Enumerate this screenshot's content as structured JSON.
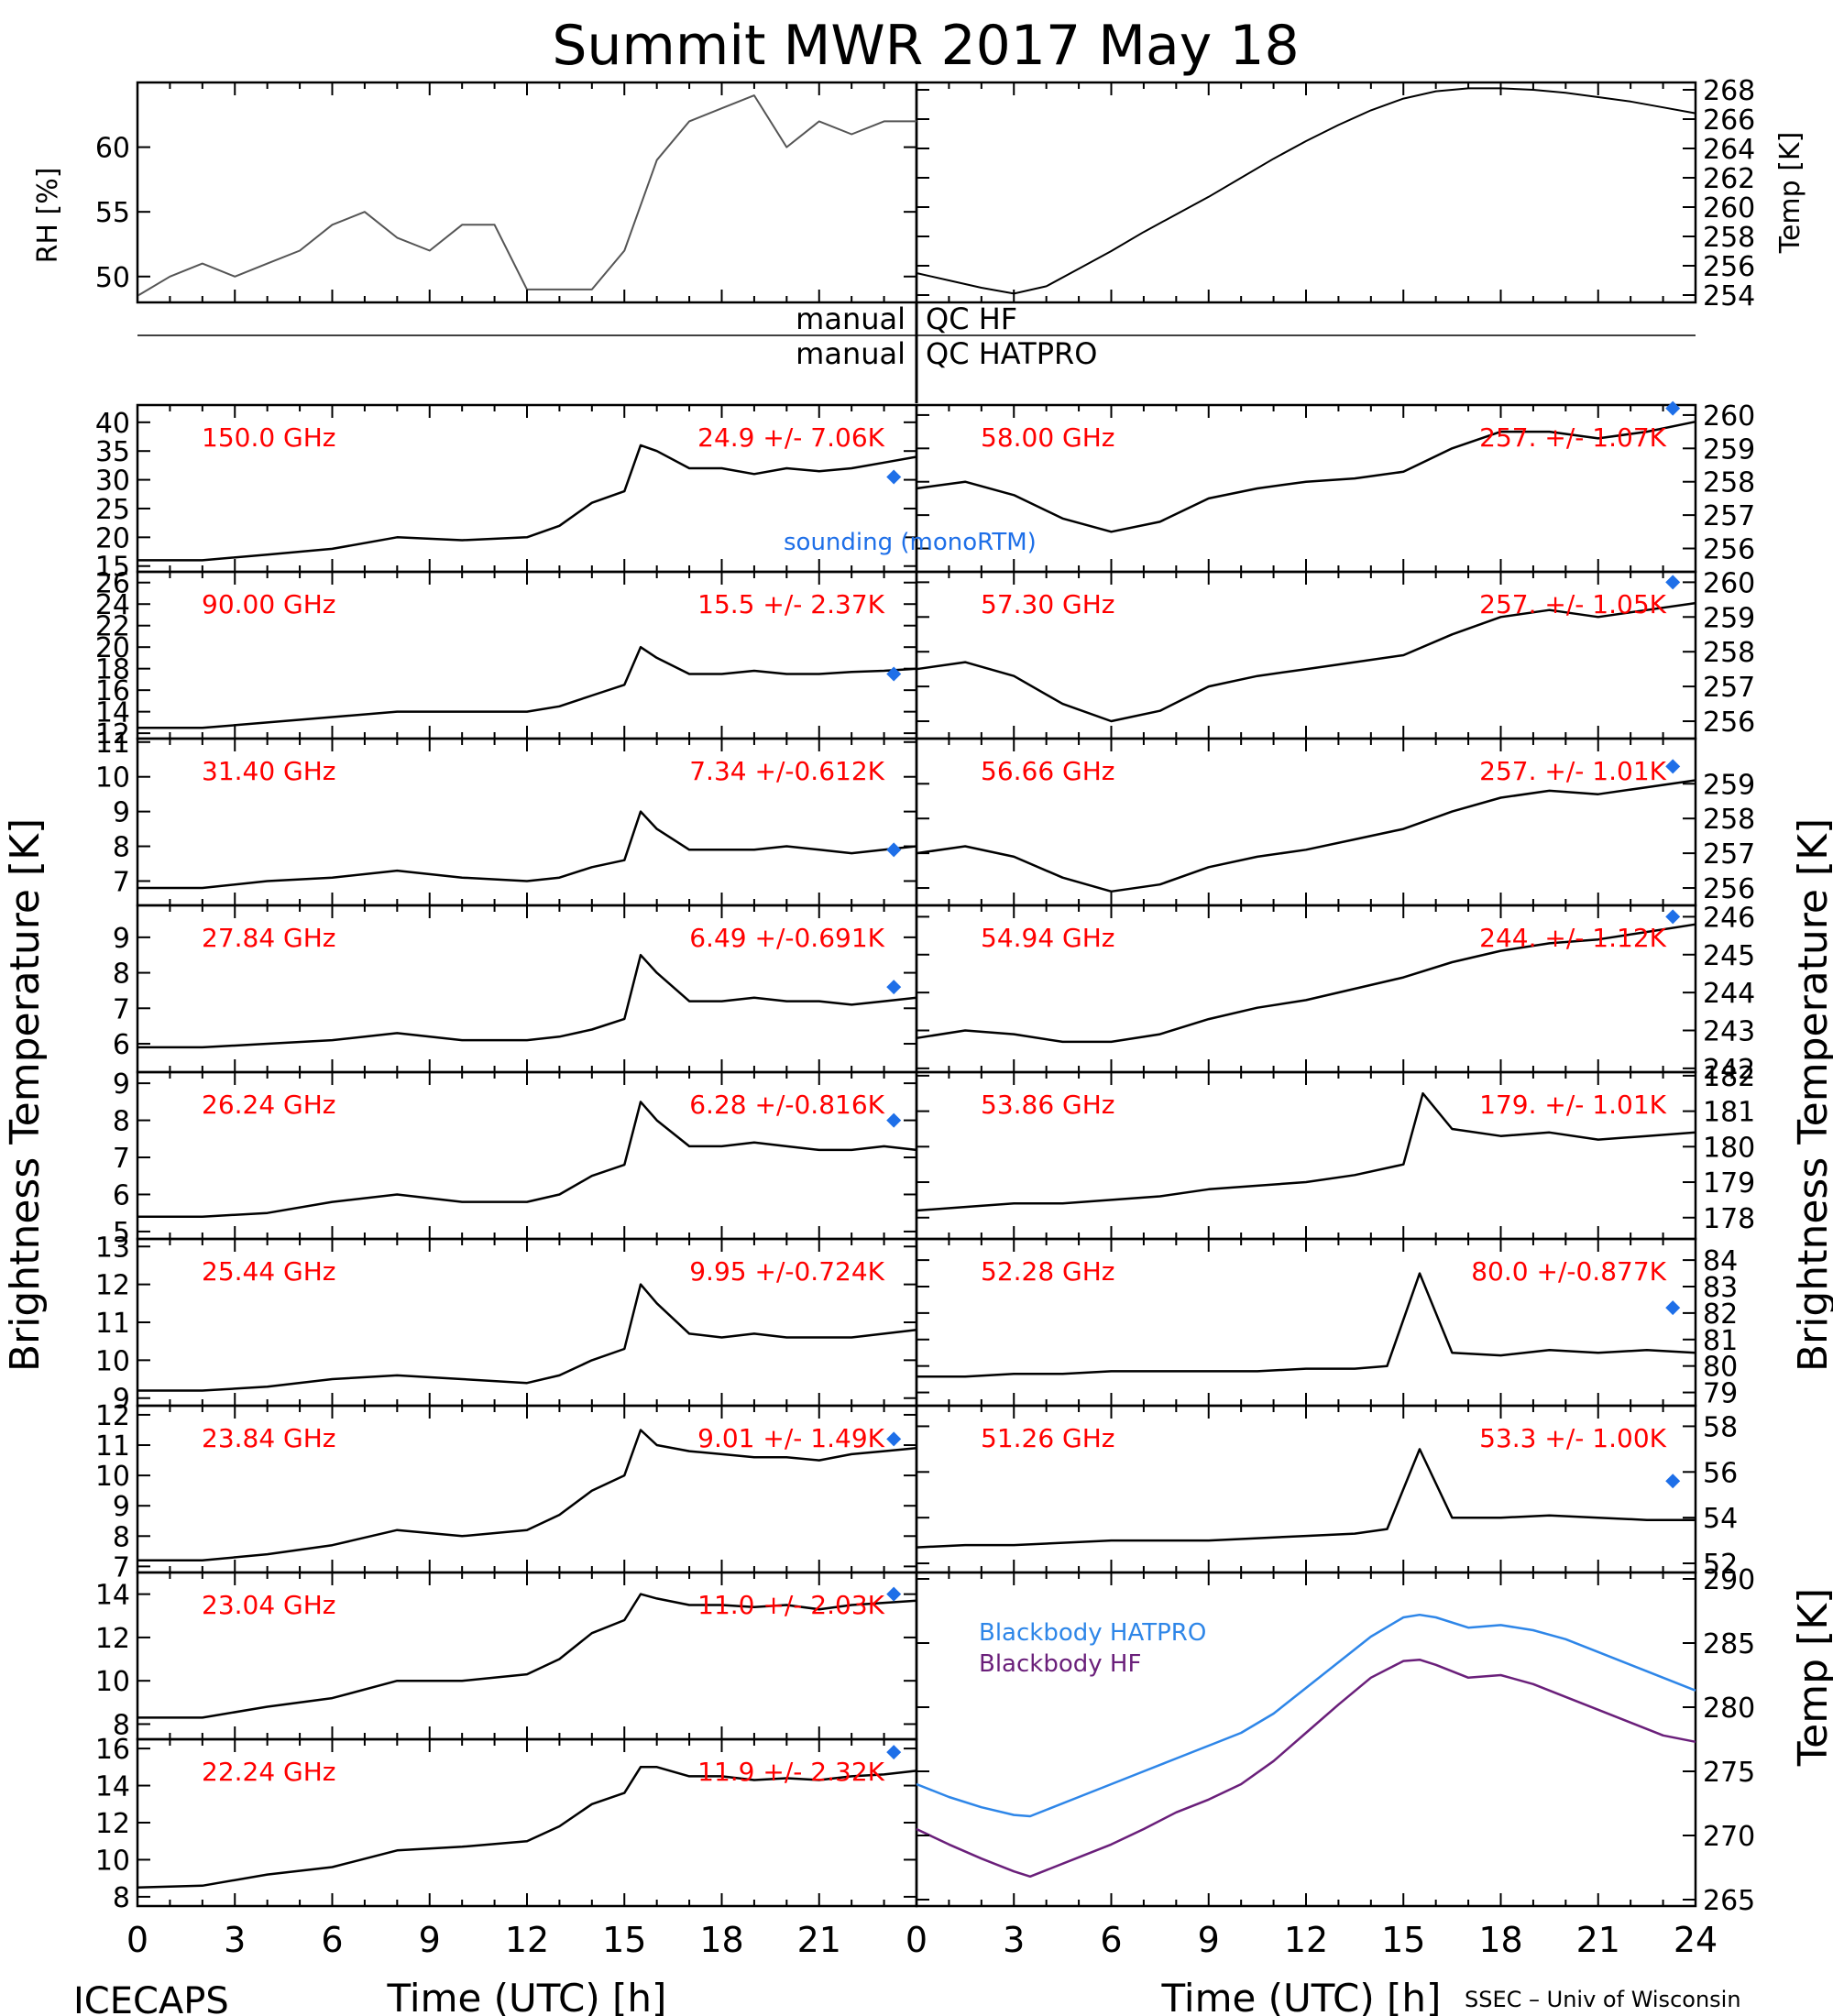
{
  "title": "Summit MWR 2017 May 18",
  "footer": {
    "left": "ICECAPS",
    "right": "SSEC – Univ of Wisconsin",
    "xlabel": "Time (UTC) [h]"
  },
  "axis_labels": {
    "brightness_left": "Brightness Temperature [K]",
    "brightness_right": "Brightness Temperature [K]",
    "rh": "RH [%]",
    "temp_top": "Temp [K]",
    "temp_bottom": "Temp [K]"
  },
  "qc_labels": {
    "left1": "manual",
    "right1": "QC HF",
    "left2": "manual",
    "right2": "QC HATPRO"
  },
  "annotations": {
    "sounding": "sounding (monoRTM)",
    "bb_hatpro": "Blackbody HATPRO",
    "bb_hf": "Blackbody HF"
  },
  "colors": {
    "data": "#000000",
    "freq_label": "#ff0000",
    "sounding": "#1e6fe8",
    "bb_hatpro": "#2e86e8",
    "bb_hf": "#6a1f7a"
  },
  "chart_data": {
    "type": "line",
    "x_ticks": [
      0,
      3,
      6,
      9,
      12,
      15,
      18,
      21,
      24
    ],
    "x_tick_labels_left": [
      "0",
      "3",
      "6",
      "9",
      "12",
      "15",
      "18",
      "21"
    ],
    "x_tick_labels_right": [
      "0",
      "3",
      "6",
      "9",
      "12",
      "15",
      "18",
      "21",
      "24"
    ],
    "rh": {
      "ylim": [
        48,
        65
      ],
      "ticks": [
        50,
        55,
        60
      ],
      "x": [
        0,
        1,
        2,
        3,
        4,
        5,
        6,
        7,
        8,
        9,
        10,
        11,
        12,
        13,
        14,
        15,
        16,
        17,
        18,
        19,
        20,
        21,
        22,
        23,
        24
      ],
      "values": [
        48.5,
        50,
        51,
        50,
        51,
        52,
        54,
        55,
        53,
        52,
        54,
        54,
        49,
        49,
        49,
        52,
        59,
        62,
        63,
        64,
        60,
        62,
        61,
        62,
        62
      ]
    },
    "temp_top": {
      "ylim": [
        253.5,
        268.5
      ],
      "ticks": [
        254,
        256,
        258,
        260,
        262,
        264,
        266,
        268
      ],
      "x": [
        0,
        1,
        2,
        3,
        4,
        5,
        6,
        7,
        8,
        9,
        10,
        11,
        12,
        13,
        14,
        15,
        16,
        17,
        18,
        19,
        20,
        21,
        22,
        23,
        24
      ],
      "values": [
        255.5,
        255,
        254.5,
        254.1,
        254.6,
        255.8,
        257,
        258.3,
        259.5,
        260.7,
        262,
        263.3,
        264.5,
        265.6,
        266.6,
        267.4,
        267.9,
        268.1,
        268.1,
        268,
        267.8,
        267.5,
        267.2,
        266.8,
        266.4
      ]
    },
    "left_panels": [
      {
        "freq": "150.0 GHz",
        "stat": "24.9 +/-  7.06K",
        "ylim": [
          14,
          43
        ],
        "ticks": [
          15,
          20,
          25,
          30,
          35,
          40
        ],
        "sounding": 30.5,
        "x": [
          0,
          2,
          4,
          6,
          8,
          10,
          12,
          13,
          14,
          15,
          15.5,
          16,
          17,
          18,
          19,
          20,
          21,
          22,
          23,
          24
        ],
        "values": [
          16,
          16,
          17,
          18,
          20,
          19.5,
          20,
          22,
          26,
          28,
          36,
          35,
          32,
          32,
          31,
          32,
          31.5,
          32,
          33,
          34
        ]
      },
      {
        "freq": "90.00 GHz",
        "stat": "15.5 +/-  2.37K",
        "ylim": [
          11.5,
          27
        ],
        "ticks": [
          12,
          14,
          16,
          18,
          20,
          22,
          24,
          26
        ],
        "sounding": 17.5,
        "x": [
          0,
          2,
          4,
          6,
          8,
          10,
          12,
          13,
          14,
          15,
          15.5,
          16,
          17,
          18,
          19,
          20,
          21,
          22,
          23,
          24
        ],
        "values": [
          12.5,
          12.5,
          13,
          13.5,
          14,
          14,
          14,
          14.5,
          15.5,
          16.5,
          20,
          19,
          17.5,
          17.5,
          17.8,
          17.5,
          17.5,
          17.7,
          17.8,
          18
        ]
      },
      {
        "freq": "31.40 GHz",
        "stat": "7.34 +/-0.612K",
        "ylim": [
          6.3,
          11.1
        ],
        "ticks": [
          7,
          8,
          9,
          10,
          11
        ],
        "sounding": 7.9,
        "x": [
          0,
          2,
          4,
          6,
          8,
          10,
          12,
          13,
          14,
          15,
          15.5,
          16,
          17,
          18,
          19,
          20,
          21,
          22,
          23,
          24
        ],
        "values": [
          6.8,
          6.8,
          7,
          7.1,
          7.3,
          7.1,
          7,
          7.1,
          7.4,
          7.6,
          9,
          8.5,
          7.9,
          7.9,
          7.9,
          8,
          7.9,
          7.8,
          7.9,
          8
        ]
      },
      {
        "freq": "27.84 GHz",
        "stat": "6.49 +/-0.691K",
        "ylim": [
          5.2,
          9.9
        ],
        "ticks": [
          6,
          7,
          8,
          9
        ],
        "sounding": 7.6,
        "x": [
          0,
          2,
          4,
          6,
          8,
          10,
          12,
          13,
          14,
          15,
          15.5,
          16,
          17,
          18,
          19,
          20,
          21,
          22,
          23,
          24
        ],
        "values": [
          5.9,
          5.9,
          6,
          6.1,
          6.3,
          6.1,
          6.1,
          6.2,
          6.4,
          6.7,
          8.5,
          8,
          7.2,
          7.2,
          7.3,
          7.2,
          7.2,
          7.1,
          7.2,
          7.3
        ]
      },
      {
        "freq": "26.24 GHz",
        "stat": "6.28 +/-0.816K",
        "ylim": [
          4.8,
          9.3
        ],
        "ticks": [
          5,
          6,
          7,
          8,
          9
        ],
        "sounding": 8.0,
        "x": [
          0,
          2,
          4,
          6,
          8,
          10,
          12,
          13,
          14,
          15,
          15.5,
          16,
          17,
          18,
          19,
          20,
          21,
          22,
          23,
          24
        ],
        "values": [
          5.4,
          5.4,
          5.5,
          5.8,
          6,
          5.8,
          5.8,
          6,
          6.5,
          6.8,
          8.5,
          8,
          7.3,
          7.3,
          7.4,
          7.3,
          7.2,
          7.2,
          7.3,
          7.2
        ]
      },
      {
        "freq": "25.44 GHz",
        "stat": "9.95 +/-0.724K",
        "ylim": [
          8.8,
          13.2
        ],
        "ticks": [
          9,
          10,
          11,
          12,
          13
        ],
        "sounding": null,
        "x": [
          0,
          2,
          4,
          6,
          8,
          10,
          12,
          13,
          14,
          15,
          15.5,
          16,
          17,
          18,
          19,
          20,
          21,
          22,
          23,
          24
        ],
        "values": [
          9.2,
          9.2,
          9.3,
          9.5,
          9.6,
          9.5,
          9.4,
          9.6,
          10,
          10.3,
          12,
          11.5,
          10.7,
          10.6,
          10.7,
          10.6,
          10.6,
          10.6,
          10.7,
          10.8
        ]
      },
      {
        "freq": "23.84 GHz",
        "stat": "9.01 +/-  1.49K",
        "ylim": [
          6.8,
          12.3
        ],
        "ticks": [
          7,
          8,
          9,
          10,
          11,
          12
        ],
        "sounding": 11.2,
        "x": [
          0,
          2,
          4,
          6,
          8,
          10,
          12,
          13,
          14,
          15,
          15.5,
          16,
          17,
          18,
          19,
          20,
          21,
          22,
          23,
          24
        ],
        "values": [
          7.2,
          7.2,
          7.4,
          7.7,
          8.2,
          8,
          8.2,
          8.7,
          9.5,
          10,
          11.5,
          11,
          10.8,
          10.7,
          10.6,
          10.6,
          10.5,
          10.7,
          10.8,
          10.9
        ]
      },
      {
        "freq": "23.04 GHz",
        "stat": "11.0 +/-  2.03K",
        "ylim": [
          7.3,
          15
        ],
        "ticks": [
          8,
          10,
          12,
          14
        ],
        "sounding": 14.0,
        "x": [
          0,
          2,
          4,
          6,
          8,
          10,
          12,
          13,
          14,
          15,
          15.5,
          16,
          17,
          18,
          19,
          20,
          21,
          22,
          23,
          24
        ],
        "values": [
          8.3,
          8.3,
          8.8,
          9.2,
          10,
          10,
          10.3,
          11,
          12.2,
          12.8,
          14,
          13.8,
          13.5,
          13.5,
          13.4,
          13.5,
          13.3,
          13.5,
          13.6,
          13.7
        ]
      },
      {
        "freq": "22.24 GHz",
        "stat": "11.9 +/-  2.32K",
        "ylim": [
          7.5,
          16.5
        ],
        "ticks": [
          8,
          10,
          12,
          14,
          16
        ],
        "sounding": 15.8,
        "x": [
          0,
          2,
          4,
          6,
          8,
          10,
          12,
          13,
          14,
          15,
          15.5,
          16,
          17,
          18,
          19,
          20,
          21,
          22,
          23,
          24
        ],
        "values": [
          8.5,
          8.6,
          9.2,
          9.6,
          10.5,
          10.7,
          11,
          11.8,
          13,
          13.6,
          15,
          15,
          14.5,
          14.5,
          14.3,
          14.4,
          14.3,
          14.5,
          14.6,
          14.8
        ]
      }
    ],
    "right_panels": [
      {
        "freq": "58.00 GHz",
        "stat": "257. +/-  1.07K",
        "ylim": [
          255.3,
          260.3
        ],
        "ticks": [
          256,
          257,
          258,
          259,
          260
        ],
        "sounding": 260.2,
        "x": [
          0,
          1.5,
          3,
          4.5,
          6,
          7.5,
          9,
          10.5,
          12,
          13.5,
          15,
          16.5,
          18,
          19.5,
          21,
          22.5,
          24
        ],
        "values": [
          257.8,
          258,
          257.6,
          256.9,
          256.5,
          256.8,
          257.5,
          257.8,
          258,
          258.1,
          258.3,
          259,
          259.5,
          259.5,
          259.3,
          259.5,
          259.8
        ]
      },
      {
        "freq": "57.30 GHz",
        "stat": "257. +/-  1.05K",
        "ylim": [
          255.5,
          260.3
        ],
        "ticks": [
          256,
          257,
          258,
          259,
          260
        ],
        "sounding": 260.0,
        "x": [
          0,
          1.5,
          3,
          4.5,
          6,
          7.5,
          9,
          10.5,
          12,
          13.5,
          15,
          16.5,
          18,
          19.5,
          21,
          22.5,
          24
        ],
        "values": [
          257.5,
          257.7,
          257.3,
          256.5,
          256,
          256.3,
          257,
          257.3,
          257.5,
          257.7,
          257.9,
          258.5,
          259,
          259.2,
          259,
          259.2,
          259.4
        ]
      },
      {
        "freq": "56.66 GHz",
        "stat": "257. +/-  1.01K",
        "ylim": [
          255.5,
          260.3
        ],
        "ticks": [
          256,
          257,
          258,
          259
        ],
        "sounding": 259.5,
        "x": [
          0,
          1.5,
          3,
          4.5,
          6,
          7.5,
          9,
          10.5,
          12,
          13.5,
          15,
          16.5,
          18,
          19.5,
          21,
          22.5,
          24
        ],
        "values": [
          257,
          257.2,
          256.9,
          256.3,
          255.9,
          256.1,
          256.6,
          256.9,
          257.1,
          257.4,
          257.7,
          258.2,
          258.6,
          258.8,
          258.7,
          258.9,
          259.1
        ]
      },
      {
        "freq": "54.94 GHz",
        "stat": "244. +/-  1.12K",
        "ylim": [
          241.9,
          246.3
        ],
        "ticks": [
          242,
          243,
          244,
          245,
          246
        ],
        "sounding": 246.0,
        "x": [
          0,
          1.5,
          3,
          4.5,
          6,
          7.5,
          9,
          10.5,
          12,
          13.5,
          15,
          16.5,
          18,
          19.5,
          21,
          22.5,
          24
        ],
        "values": [
          242.8,
          243,
          242.9,
          242.7,
          242.7,
          242.9,
          243.3,
          243.6,
          243.8,
          244.1,
          244.4,
          244.8,
          245.1,
          245.3,
          245.4,
          245.6,
          245.8
        ]
      },
      {
        "freq": "53.86 GHz",
        "stat": "179. +/-  1.01K",
        "ylim": [
          177.4,
          182.1
        ],
        "ticks": [
          178,
          179,
          180,
          181,
          182
        ],
        "sounding": null,
        "x": [
          0,
          1.5,
          3,
          4.5,
          6,
          7.5,
          9,
          10.5,
          12,
          13.5,
          15,
          15.6,
          16.5,
          18,
          19.5,
          21,
          22.5,
          24
        ],
        "values": [
          178.2,
          178.3,
          178.4,
          178.4,
          178.5,
          178.6,
          178.8,
          178.9,
          179,
          179.2,
          179.5,
          181.5,
          180.5,
          180.3,
          180.4,
          180.2,
          180.3,
          180.4
        ]
      },
      {
        "freq": "52.28 GHz",
        "stat": "80.0 +/-0.877K",
        "ylim": [
          78.5,
          84.8
        ],
        "ticks": [
          79,
          80,
          81,
          82,
          83,
          84
        ],
        "sounding": 82.2,
        "x": [
          0,
          1.5,
          3,
          4.5,
          6,
          7.5,
          9,
          10.5,
          12,
          13.5,
          14.5,
          15.5,
          16.5,
          18,
          19.5,
          21,
          22.5,
          24
        ],
        "values": [
          79.6,
          79.6,
          79.7,
          79.7,
          79.8,
          79.8,
          79.8,
          79.8,
          79.9,
          79.9,
          80,
          83.5,
          80.5,
          80.4,
          80.6,
          80.5,
          80.6,
          80.5
        ]
      },
      {
        "freq": "51.26 GHz",
        "stat": "53.3 +/-  1.00K",
        "ylim": [
          51.6,
          58.9
        ],
        "ticks": [
          52,
          54,
          56,
          58
        ],
        "sounding": 55.6,
        "x": [
          0,
          1.5,
          3,
          4.5,
          6,
          7.5,
          9,
          10.5,
          12,
          13.5,
          14.5,
          15.5,
          16.5,
          18,
          19.5,
          21,
          22.5,
          24
        ],
        "values": [
          52.7,
          52.8,
          52.8,
          52.9,
          53,
          53,
          53,
          53.1,
          53.2,
          53.3,
          53.5,
          57,
          54,
          54,
          54.1,
          54,
          53.9,
          53.9
        ]
      }
    ],
    "blackbody": {
      "ylim": [
        264.5,
        290.5
      ],
      "ticks": [
        265,
        270,
        275,
        280,
        285,
        290
      ],
      "series": [
        {
          "name": "Blackbody HATPRO",
          "x": [
            0,
            1,
            2,
            3,
            3.5,
            4,
            5,
            6,
            7,
            8,
            9,
            10,
            11,
            12,
            13,
            14,
            15,
            15.5,
            16,
            17,
            18,
            19,
            20,
            21,
            22,
            23,
            24
          ],
          "values": [
            274,
            273,
            272.2,
            271.6,
            271.5,
            272,
            273,
            274,
            275,
            276,
            277,
            278,
            279.5,
            281.5,
            283.5,
            285.5,
            287,
            287.2,
            287,
            286.2,
            286.4,
            286,
            285.3,
            284.3,
            283.3,
            282.3,
            281.3
          ]
        },
        {
          "name": "Blackbody HF",
          "x": [
            0,
            1,
            2,
            3,
            3.5,
            4,
            5,
            6,
            7,
            8,
            9,
            10,
            11,
            12,
            13,
            14,
            15,
            15.5,
            16,
            17,
            18,
            19,
            20,
            21,
            22,
            23,
            24
          ],
          "values": [
            270.5,
            269.3,
            268.2,
            267.2,
            266.8,
            267.3,
            268.3,
            269.3,
            270.5,
            271.8,
            272.8,
            274,
            275.8,
            278,
            280.2,
            282.3,
            283.6,
            283.7,
            283.3,
            282.3,
            282.5,
            281.8,
            280.8,
            279.8,
            278.8,
            277.8,
            277.3
          ]
        }
      ]
    }
  }
}
